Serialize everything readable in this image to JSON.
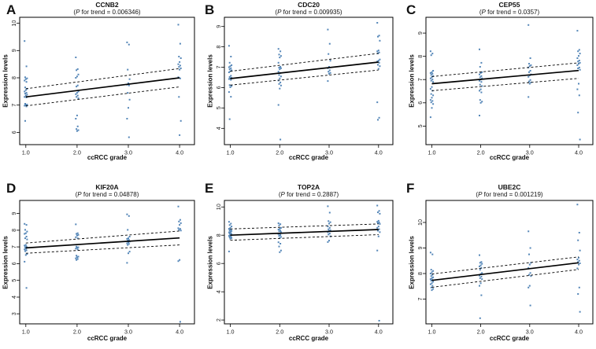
{
  "figure": {
    "background": "#ffffff",
    "point_color": "#3d76ae",
    "line_color": "#000000",
    "xlabel": "ccRCC grade",
    "ylabel": "Expression levels"
  },
  "chart_data": [
    {
      "type": "scatter",
      "panel_letter": "A",
      "title": "CCNB2",
      "p_open": "(",
      "p_symbol": "P",
      "p_rest": " for trend = 0.006346)",
      "xlabel": "ccRCC grade",
      "ylabel": "Expression levels",
      "x_values": [
        1,
        2,
        3,
        4
      ],
      "x_ticks": [
        "1.0",
        "2.0",
        "3.0",
        "4.0"
      ],
      "y_ticks": [
        6,
        7,
        8,
        9,
        10
      ],
      "xlim": [
        0.88,
        4.29
      ],
      "ylim": [
        5.55,
        10.22
      ],
      "points": {
        "grade_1": [
          9.35,
          8.42,
          8.02,
          7.98,
          7.95,
          7.9,
          7.85,
          7.65,
          7.6,
          7.55,
          7.5,
          7.45,
          7.42,
          7.38,
          7.35,
          7.3,
          7.28,
          7.05,
          7.02,
          7.0,
          6.98,
          6.95,
          6.42
        ],
        "grade_2": [
          8.75,
          8.32,
          8.28,
          8.12,
          8.05,
          8.0,
          7.72,
          7.68,
          7.5,
          7.45,
          7.4,
          7.35,
          7.3,
          7.25,
          6.62,
          6.5,
          6.22,
          6.12,
          6.08,
          6.05
        ],
        "grade_3": [
          9.3,
          9.22,
          8.3,
          7.95,
          7.8,
          7.75,
          7.72,
          7.45,
          7.2,
          6.9,
          6.5,
          5.82
        ],
        "grade_4": [
          9.95,
          9.25,
          8.78,
          8.72,
          8.58,
          8.5,
          8.45,
          8.4,
          8.35,
          8.3,
          8.02,
          7.98,
          7.3,
          6.42,
          5.9
        ]
      },
      "trend": {
        "x": [
          1,
          4
        ],
        "y": [
          7.3,
          8.0
        ]
      },
      "ci_upper": {
        "x": [
          1,
          4
        ],
        "y": [
          7.6,
          8.34
        ]
      },
      "ci_lower": {
        "x": [
          1,
          4
        ],
        "y": [
          6.97,
          7.67
        ]
      }
    },
    {
      "type": "scatter",
      "panel_letter": "B",
      "title": "CDC20",
      "p_open": "(",
      "p_symbol": "P",
      "p_rest": " for trend = 0.009935)",
      "xlabel": "ccRCC grade",
      "ylabel": "Expression levels",
      "x_values": [
        1,
        2,
        3,
        4
      ],
      "x_ticks": [
        "1.0",
        "2.0",
        "3.0",
        "4.0"
      ],
      "y_ticks": [
        4,
        5,
        6,
        7,
        8,
        9
      ],
      "xlim": [
        0.88,
        4.29
      ],
      "ylim": [
        3.2,
        9.45
      ],
      "points": {
        "grade_1": [
          8.05,
          7.52,
          7.22,
          7.1,
          7.05,
          7.0,
          6.95,
          6.9,
          6.85,
          6.8,
          6.75,
          6.58,
          6.52,
          6.48,
          6.45,
          6.42,
          6.38,
          6.12,
          6.08,
          6.02,
          5.78,
          5.55,
          4.45
        ],
        "grade_2": [
          7.9,
          7.78,
          7.62,
          7.55,
          7.48,
          7.22,
          7.02,
          6.98,
          6.95,
          6.9,
          6.78,
          6.72,
          6.62,
          6.55,
          6.45,
          6.35,
          6.25,
          6.18,
          6.1,
          5.95,
          5.15,
          3.45
        ],
        "grade_3": [
          8.85,
          8.15,
          7.65,
          7.32,
          7.02,
          6.95,
          6.85,
          6.78,
          6.72,
          6.68,
          6.32
        ],
        "grade_4": [
          9.18,
          8.55,
          8.5,
          8.3,
          7.82,
          7.78,
          7.72,
          7.68,
          7.38,
          7.32,
          7.28,
          7.22,
          7.12,
          7.05,
          6.92,
          5.28,
          4.52,
          4.42
        ]
      },
      "trend": {
        "x": [
          1,
          4
        ],
        "y": [
          6.44,
          7.25
        ]
      },
      "ci_upper": {
        "x": [
          1,
          4
        ],
        "y": [
          6.8,
          7.68
        ]
      },
      "ci_lower": {
        "x": [
          1,
          4
        ],
        "y": [
          6.12,
          6.86
        ]
      }
    },
    {
      "type": "scatter",
      "panel_letter": "C",
      "title": "CEP55",
      "p_open": "(",
      "p_symbol": "P",
      "p_rest": " for trend = 0.0357)",
      "xlabel": "ccRCC grade",
      "ylabel": "Expression levels",
      "x_values": [
        1,
        2,
        3,
        4
      ],
      "x_ticks": [
        "1.0",
        "2.0",
        "3.0",
        "4.0"
      ],
      "y_ticks": [
        5,
        6,
        7,
        8,
        9
      ],
      "xlim": [
        0.88,
        4.29
      ],
      "ylim": [
        4.2,
        9.68
      ],
      "points": {
        "grade_1": [
          8.22,
          8.12,
          8.05,
          7.38,
          7.32,
          7.28,
          7.25,
          7.2,
          7.15,
          7.1,
          7.05,
          7.0,
          6.95,
          6.9,
          6.68,
          6.6,
          6.52,
          6.38,
          6.32,
          6.22,
          6.12,
          6.08,
          6.02,
          5.95,
          5.78,
          5.38
        ],
        "grade_2": [
          8.3,
          7.72,
          7.55,
          7.32,
          7.28,
          7.22,
          7.15,
          7.1,
          7.05,
          7.0,
          6.95,
          6.9,
          6.78,
          6.72,
          6.58,
          6.52,
          6.45,
          6.12,
          6.05,
          6.0,
          5.45
        ],
        "grade_3": [
          9.35,
          7.92,
          7.68,
          7.62,
          7.58,
          7.52,
          7.38,
          7.32,
          7.22,
          7.18,
          7.12,
          6.98,
          6.92,
          6.88,
          6.82,
          6.25
        ],
        "grade_4": [
          9.1,
          8.28,
          8.22,
          8.12,
          8.02,
          7.92,
          7.82,
          7.78,
          7.72,
          7.68,
          7.62,
          7.52,
          7.48,
          7.42,
          6.82,
          6.58,
          6.32,
          5.58,
          4.42
        ]
      },
      "trend": {
        "x": [
          1,
          4
        ],
        "y": [
          6.82,
          7.39
        ]
      },
      "ci_upper": {
        "x": [
          1,
          4
        ],
        "y": [
          7.13,
          7.72
        ]
      },
      "ci_lower": {
        "x": [
          1,
          4
        ],
        "y": [
          6.52,
          7.05
        ]
      }
    },
    {
      "type": "scatter",
      "panel_letter": "D",
      "title": "KIF20A",
      "p_open": "(",
      "p_symbol": "P",
      "p_rest": " for trend = 0.04878)",
      "xlabel": "ccRCC grade",
      "ylabel": "Expression levels",
      "x_values": [
        1,
        2,
        3,
        4
      ],
      "x_ticks": [
        "1.0",
        "2.0",
        "3.0",
        "4.0"
      ],
      "y_ticks": [
        3,
        4,
        5,
        6,
        7,
        8,
        9
      ],
      "xlim": [
        0.88,
        4.29
      ],
      "ylim": [
        2.4,
        9.78
      ],
      "points": {
        "grade_1": [
          8.38,
          8.32,
          8.02,
          7.92,
          7.82,
          7.78,
          7.62,
          7.52,
          7.45,
          7.12,
          7.08,
          7.02,
          6.98,
          6.95,
          6.9,
          6.85,
          6.8,
          6.75,
          6.58,
          6.52,
          6.12,
          4.55
        ],
        "grade_2": [
          8.35,
          7.82,
          7.78,
          7.72,
          7.68,
          7.58,
          7.52,
          7.02,
          6.98,
          6.95,
          6.9,
          6.85,
          6.48,
          6.42,
          6.38,
          6.32,
          6.28,
          6.22
        ],
        "grade_3": [
          8.95,
          8.85,
          8.02,
          7.62,
          7.52,
          7.48,
          7.42,
          7.38,
          7.32,
          7.28,
          7.22,
          7.18,
          7.12,
          6.72,
          6.62,
          6.05
        ],
        "grade_4": [
          9.42,
          8.62,
          8.52,
          8.42,
          8.32,
          8.12,
          8.08,
          8.02,
          7.98,
          6.22,
          6.15,
          2.52
        ]
      },
      "trend": {
        "x": [
          1,
          4
        ],
        "y": [
          6.94,
          7.54
        ]
      },
      "ci_upper": {
        "x": [
          1,
          4
        ],
        "y": [
          7.23,
          7.95
        ]
      },
      "ci_lower": {
        "x": [
          1,
          4
        ],
        "y": [
          6.62,
          7.12
        ]
      }
    },
    {
      "type": "scatter",
      "panel_letter": "E",
      "title": "TOP2A",
      "p_open": "(",
      "p_symbol": "P",
      "p_rest": " for trend = 0.2887)",
      "xlabel": "ccRCC grade",
      "ylabel": "Expression levels",
      "x_values": [
        1,
        2,
        3,
        4
      ],
      "x_ticks": [
        "1.0",
        "2.0",
        "3.0",
        "4.0"
      ],
      "y_ticks": [
        2,
        4,
        6,
        8,
        10
      ],
      "xlim": [
        0.88,
        4.29
      ],
      "ylim": [
        1.73,
        10.46
      ],
      "points": {
        "grade_1": [
          8.95,
          8.82,
          8.72,
          8.62,
          8.52,
          8.45,
          8.4,
          8.35,
          8.3,
          8.25,
          8.2,
          8.15,
          8.1,
          8.05,
          8.0,
          7.95,
          7.9,
          7.85,
          7.8,
          7.75,
          6.85
        ],
        "grade_2": [
          8.85,
          8.78,
          8.7,
          8.52,
          8.45,
          8.4,
          8.32,
          8.28,
          8.22,
          8.12,
          8.08,
          8.02,
          7.95,
          7.88,
          7.8,
          7.5,
          7.4,
          7.2,
          6.92,
          6.8
        ],
        "grade_3": [
          10.05,
          9.6,
          9.0,
          8.92,
          8.82,
          8.62,
          8.52,
          8.42,
          8.35,
          8.3,
          8.22,
          8.12,
          8.05,
          7.92,
          7.62,
          7.52
        ],
        "grade_4": [
          10.1,
          9.72,
          9.62,
          9.52,
          9.02,
          8.95,
          8.9,
          8.85,
          8.8,
          8.62,
          8.52,
          8.42,
          8.32,
          8.22,
          7.92,
          6.92,
          1.95
        ]
      },
      "trend": {
        "x": [
          1,
          4
        ],
        "y": [
          8.0,
          8.4
        ]
      },
      "ci_upper": {
        "x": [
          1,
          4
        ],
        "y": [
          8.44,
          8.8
        ]
      },
      "ci_lower": {
        "x": [
          1,
          4
        ],
        "y": [
          7.64,
          8.04
        ]
      }
    },
    {
      "type": "scatter",
      "panel_letter": "F",
      "title": "UBE2C",
      "p_open": "(",
      "p_symbol": "P",
      "p_rest": " for trend = 0.001219)",
      "xlabel": "ccRCC grade",
      "ylabel": "Expression levels",
      "x_values": [
        1,
        2,
        3,
        4
      ],
      "x_ticks": [
        "1.0",
        "2.0",
        "3.0",
        "4.0"
      ],
      "y_ticks": [
        7,
        8,
        9,
        10
      ],
      "xlim": [
        0.88,
        4.29
      ],
      "ylim": [
        6.03,
        10.86
      ],
      "points": {
        "grade_1": [
          8.82,
          8.75,
          8.15,
          8.1,
          8.05,
          8.0,
          7.95,
          7.9,
          7.85,
          7.82,
          7.78,
          7.75,
          7.72,
          7.68,
          7.62,
          7.58,
          7.52,
          7.45,
          7.4,
          7.35
        ],
        "grade_2": [
          8.72,
          8.45,
          8.42,
          8.38,
          8.32,
          8.28,
          8.22,
          8.15,
          8.02,
          7.98,
          7.92,
          7.88,
          7.82,
          7.78,
          7.62,
          7.52,
          7.15,
          6.25
        ],
        "grade_3": [
          9.65,
          9.0,
          8.75,
          8.42,
          8.35,
          8.22,
          8.02,
          7.95,
          7.9,
          7.52,
          7.45,
          6.75
        ],
        "grade_4": [
          10.7,
          9.6,
          9.3,
          8.9,
          8.62,
          8.55,
          8.5,
          8.45,
          8.4,
          8.35,
          8.2,
          7.45,
          7.2,
          6.5
        ]
      },
      "trend": {
        "x": [
          1,
          4
        ],
        "y": [
          7.73,
          8.42
        ]
      },
      "ci_upper": {
        "x": [
          1,
          4
        ],
        "y": [
          7.98,
          8.65
        ]
      },
      "ci_lower": {
        "x": [
          1,
          4
        ],
        "y": [
          7.46,
          8.16
        ]
      }
    }
  ]
}
